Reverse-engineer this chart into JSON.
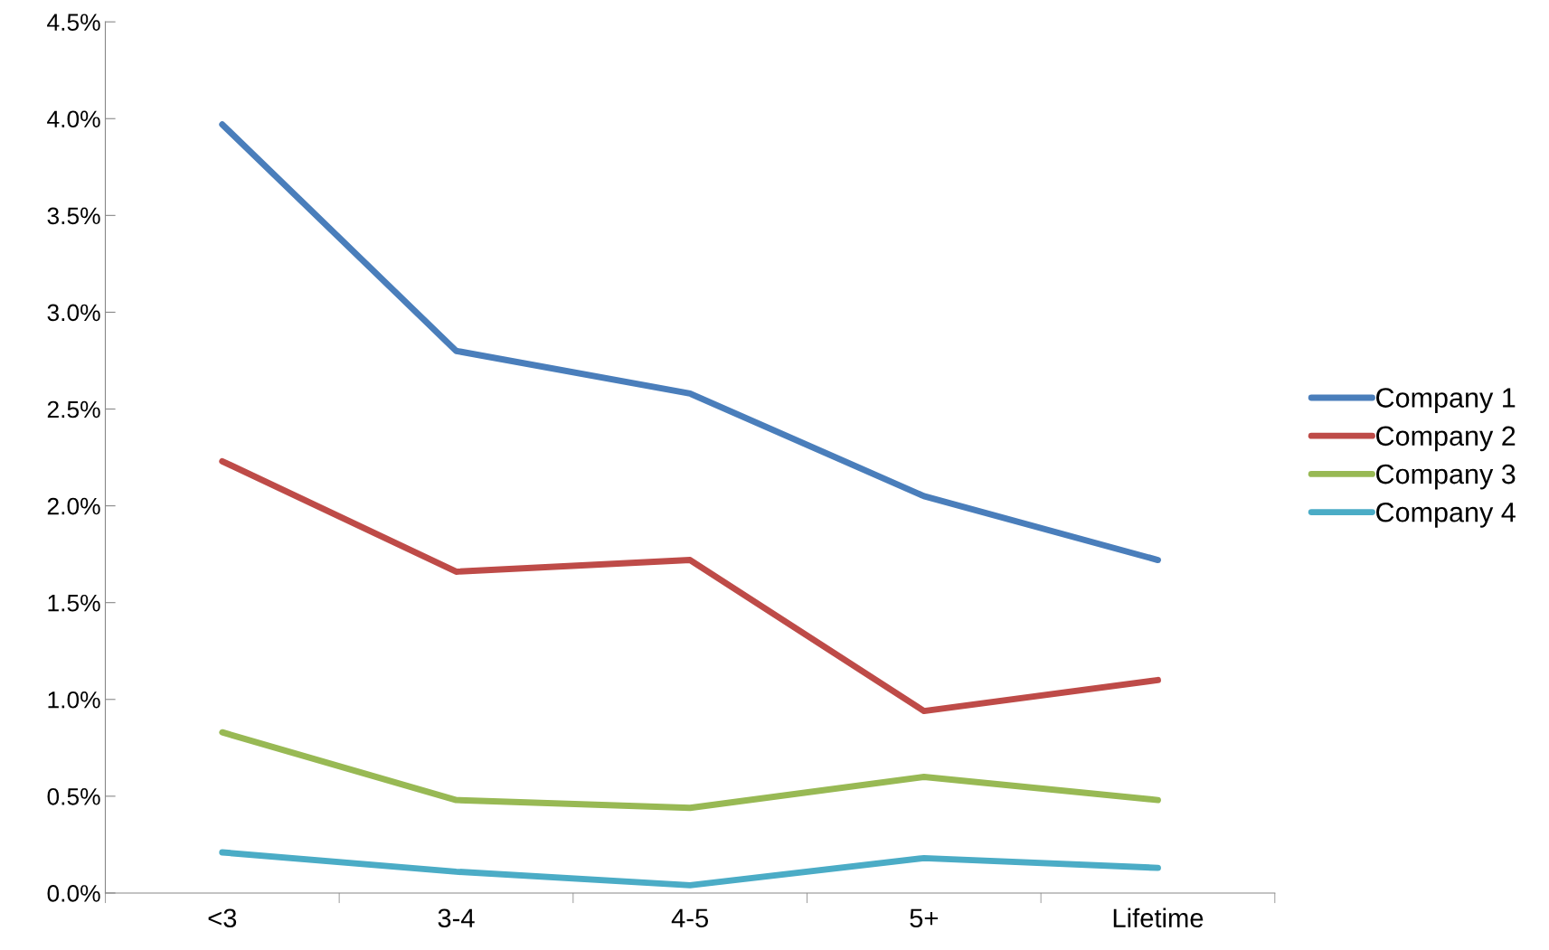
{
  "chart_data": {
    "type": "line",
    "categories": [
      "<3",
      "3-4",
      "4-5",
      "5+",
      "Lifetime"
    ],
    "series": [
      {
        "name": "Company 1",
        "color": "#4a7ebb",
        "values": [
          3.97,
          2.8,
          2.58,
          2.05,
          1.72
        ]
      },
      {
        "name": "Company 2",
        "color": "#be4b48",
        "values": [
          2.23,
          1.66,
          1.72,
          0.94,
          1.1
        ]
      },
      {
        "name": "Company 3",
        "color": "#98b954",
        "values": [
          0.83,
          0.48,
          0.44,
          0.6,
          0.48
        ]
      },
      {
        "name": "Company 4",
        "color": "#4bacc6",
        "values": [
          0.21,
          0.11,
          0.04,
          0.18,
          0.13
        ]
      }
    ],
    "ylim": [
      0,
      4.5
    ],
    "yticks": [
      {
        "value": 0,
        "label": "0.0%"
      },
      {
        "value": 0.5,
        "label": "0.5%"
      },
      {
        "value": 1,
        "label": "1.0%"
      },
      {
        "value": 1.5,
        "label": "1.5%"
      },
      {
        "value": 2,
        "label": "2.0%"
      },
      {
        "value": 2.5,
        "label": "2.5%"
      },
      {
        "value": 3,
        "label": "3.0%"
      },
      {
        "value": 3.5,
        "label": "3.5%"
      },
      {
        "value": 4,
        "label": "4.0%"
      },
      {
        "value": 4.5,
        "label": "4.5%"
      }
    ],
    "grid": false,
    "legend": "right",
    "marker": "none",
    "line_style": "solid"
  }
}
